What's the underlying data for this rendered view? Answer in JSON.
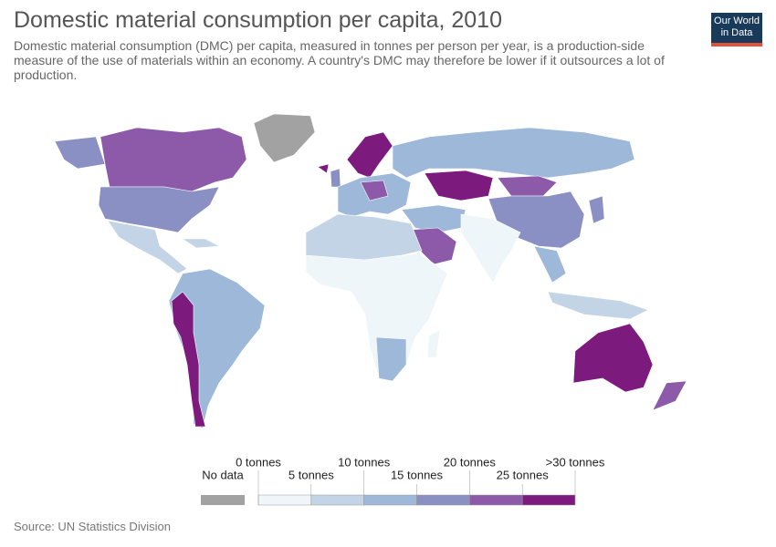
{
  "header": {
    "title": "Domestic material consumption per capita, 2010",
    "subtitle": "Domestic material consumption (DMC) per capita, measured in tonnes per person per year, is a production-side measure of the use of materials within an economy. A country's DMC may therefore be lower if it outsources a lot of production.",
    "logo": "Our World in Data"
  },
  "legend": {
    "no_data": {
      "label": "No data",
      "color": "#a2a2a2"
    },
    "labels": [
      "0 tonnes",
      "5 tonnes",
      "10 tonnes",
      "15 tonnes",
      "20 tonnes",
      "25 tonnes",
      ">30 tonnes"
    ],
    "colors": [
      "#eef6fa",
      "#c3d4e6",
      "#9db8d8",
      "#8a8fc4",
      "#8d5aa9",
      "#7c1a7e"
    ]
  },
  "footer": {
    "source": "Source: UN Statistics Division"
  }
}
